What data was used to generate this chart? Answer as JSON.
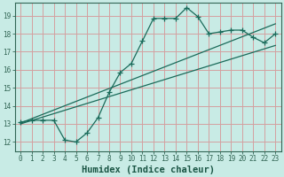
{
  "bg_color": "#c8ebe5",
  "grid_color": "#d4a0a0",
  "line_color": "#1a6b5a",
  "xlabel": "Humidex (Indice chaleur)",
  "xlim": [
    -0.5,
    23.5
  ],
  "ylim": [
    11.5,
    19.7
  ],
  "yticks": [
    12,
    13,
    14,
    15,
    16,
    17,
    18,
    19
  ],
  "xticks": [
    0,
    1,
    2,
    3,
    4,
    5,
    6,
    7,
    8,
    9,
    10,
    11,
    12,
    13,
    14,
    15,
    16,
    17,
    18,
    19,
    20,
    21,
    22,
    23
  ],
  "line1_x": [
    0,
    1,
    2,
    3,
    4,
    5,
    6,
    7,
    8,
    9,
    10,
    11,
    12,
    13,
    14,
    15,
    16,
    17,
    18,
    19,
    20,
    21,
    22,
    23
  ],
  "line1_y": [
    13.1,
    13.2,
    13.2,
    13.2,
    12.1,
    12.0,
    12.5,
    13.35,
    14.75,
    15.85,
    16.35,
    17.6,
    18.85,
    18.85,
    18.85,
    19.45,
    18.95,
    18.0,
    18.1,
    18.2,
    18.2,
    17.8,
    17.5,
    18.0
  ],
  "line2_x": [
    0,
    23
  ],
  "line2_y": [
    13.05,
    18.55
  ],
  "line3_x": [
    0,
    23
  ],
  "line3_y": [
    13.0,
    17.35
  ],
  "tick_fontsize": 5.5,
  "label_fontsize": 7.5
}
